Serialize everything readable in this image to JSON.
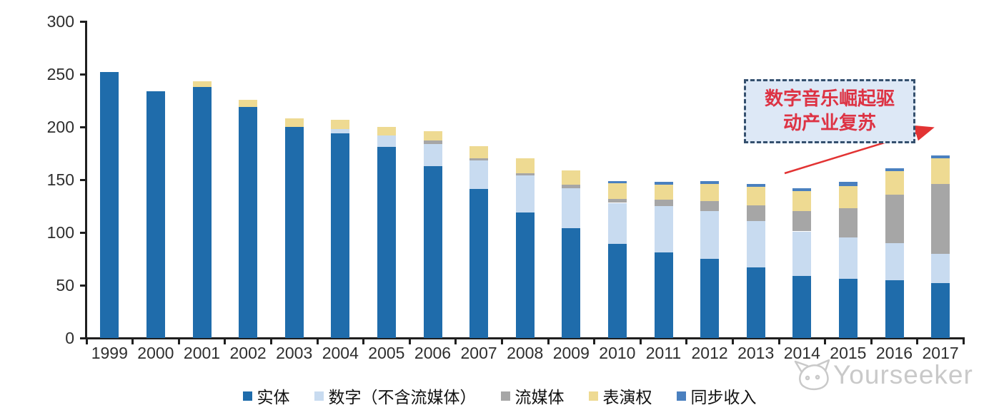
{
  "chart_data": {
    "type": "bar",
    "stacked": true,
    "title": "",
    "xlabel": "",
    "ylabel": "",
    "ylim": [
      0,
      300
    ],
    "yticks": [
      0,
      50,
      100,
      150,
      200,
      250,
      300
    ],
    "grid": false,
    "legend_position": "bottom",
    "categories": [
      "1999",
      "2000",
      "2001",
      "2002",
      "2003",
      "2004",
      "2005",
      "2006",
      "2007",
      "2008",
      "2009",
      "2010",
      "2011",
      "2012",
      "2013",
      "2014",
      "2015",
      "2016",
      "2017"
    ],
    "series": [
      {
        "id": "physical",
        "name": "实体",
        "color": "#1f6cab",
        "values": [
          252,
          234,
          238,
          219,
          200,
          194,
          181,
          163,
          141,
          119,
          104,
          89,
          81,
          75,
          67,
          59,
          56,
          55,
          52
        ]
      },
      {
        "id": "digital",
        "name": "数字（不含流媒体）",
        "color": "#c8dbf0",
        "values": [
          0,
          0,
          0,
          0,
          0,
          4,
          11,
          21,
          27,
          35,
          38,
          39,
          44,
          45,
          44,
          42,
          39,
          35,
          28
        ]
      },
      {
        "id": "streaming",
        "name": "流媒体",
        "color": "#a6a6a6",
        "values": [
          0,
          0,
          0,
          0,
          0,
          0,
          0,
          3,
          2,
          2,
          3,
          4,
          6,
          10,
          15,
          19,
          28,
          46,
          66
        ]
      },
      {
        "id": "performance",
        "name": "表演权",
        "color": "#eeda92",
        "values": [
          0,
          0,
          5,
          7,
          8,
          9,
          8,
          9,
          12,
          14,
          14,
          15,
          14,
          16,
          17,
          19,
          21,
          22,
          24
        ]
      },
      {
        "id": "sync",
        "name": "同步收入",
        "color": "#4a80bf",
        "values": [
          0,
          0,
          0,
          0,
          0,
          0,
          0,
          0,
          0,
          0,
          0,
          2,
          3,
          3,
          3,
          3,
          4,
          3,
          3
        ]
      }
    ]
  },
  "annotation": {
    "line1": "数字音乐崛起驱",
    "line2": "动产业复苏",
    "text_color": "#dd3344",
    "box_fill": "#dde8f6",
    "border_color": "#35506e",
    "arrow_color": "#e23333"
  },
  "axis": {
    "line_color": "#1f1f1f",
    "label_color": "#2e2e2e"
  },
  "watermark": {
    "text": "Yourseeker",
    "icon": "cat-logo-icon",
    "color": "#c7c7c7"
  }
}
